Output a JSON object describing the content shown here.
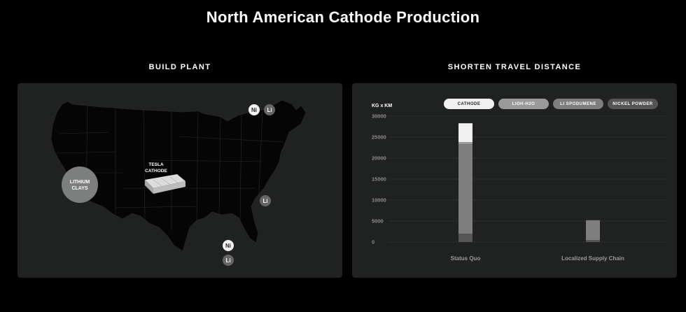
{
  "title": "North American Cathode Production",
  "left_section": {
    "heading": "BUILD PLANT",
    "plant_label": [
      "TESLA",
      "CATHODE"
    ],
    "clay_label": [
      "LITHIUM",
      "CLAYS"
    ],
    "badges": {
      "canada_ni": "Ni",
      "canada_li": "Li",
      "east_li": "Li",
      "south_ni": "Ni",
      "south_li": "Li"
    }
  },
  "right_section": {
    "heading": "SHORTEN TRAVEL DISTANCE"
  },
  "chart_data": {
    "type": "bar",
    "stacked": true,
    "ylabel": "KG x KM",
    "ylim": [
      0,
      30000
    ],
    "yticks": [
      "30000",
      "25000",
      "20000",
      "15000",
      "10000",
      "5000",
      "0"
    ],
    "ytick_values": [
      30000,
      25000,
      20000,
      15000,
      10000,
      5000,
      0
    ],
    "categories": [
      "Status Quo",
      "Localized Supply Chain"
    ],
    "legend": [
      "CATHODE",
      "LIOH-H2O",
      "LI SPODUMENE",
      "NICKEL POWDER"
    ],
    "colors": [
      "#f0f0f0",
      "#9a9a9a",
      "#7e7e7e",
      "#555555"
    ],
    "series": [
      {
        "name": "CATHODE",
        "values": [
          4500,
          0
        ]
      },
      {
        "name": "LIOH-H2O",
        "values": [
          500,
          0
        ]
      },
      {
        "name": "LI SPODUMENE",
        "values": [
          21300,
          4700
        ]
      },
      {
        "name": "NICKEL POWDER",
        "values": [
          2000,
          500
        ]
      }
    ],
    "grid": true,
    "legend_position": "top"
  }
}
